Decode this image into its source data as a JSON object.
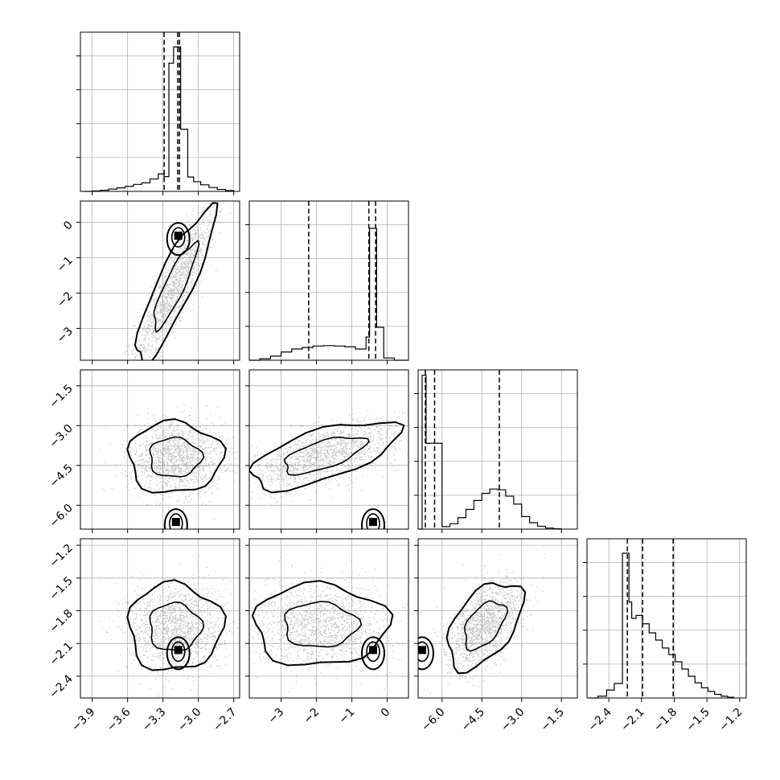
{
  "chart_data": {
    "type": "corner",
    "dimensions": 4,
    "grid": true,
    "params": [
      {
        "range": [
          -4.0,
          -2.65
        ],
        "ticks": [
          -3.9,
          -3.6,
          -3.3,
          -3.0,
          -2.7
        ],
        "tick_labels": [
          "−3.9",
          "−3.6",
          "−3.3",
          "−3.0",
          "−2.7"
        ]
      },
      {
        "range": [
          -3.9,
          0.6
        ],
        "ticks": [
          -3,
          -2,
          -1,
          0
        ],
        "tick_labels": [
          "−3",
          "−2",
          "−1",
          "0"
        ]
      },
      {
        "range": [
          -6.9,
          -0.9
        ],
        "ticks": [
          -6.0,
          -4.5,
          -3.0,
          -1.5
        ],
        "tick_labels": [
          "−6.0",
          "−4.5",
          "−3.0",
          "−1.5"
        ]
      },
      {
        "range": [
          -2.6,
          -1.14
        ],
        "ticks": [
          -2.4,
          -2.1,
          -1.8,
          -1.5,
          -1.2
        ],
        "tick_labels": [
          "−2.4",
          "−2.1",
          "−1.8",
          "−1.5",
          "−1.2"
        ]
      }
    ],
    "histograms": [
      {
        "bin_edges": [
          -3.97,
          -3.9,
          -3.83,
          -3.76,
          -3.69,
          -3.62,
          -3.55,
          -3.48,
          -3.41,
          -3.34,
          -3.29,
          -3.25,
          -3.21,
          -3.15,
          -3.09,
          -3.04,
          -2.98,
          -2.91,
          -2.84,
          -2.77,
          -2.7
        ],
        "counts": [
          0,
          1,
          3,
          6,
          9,
          13,
          18,
          22,
          32,
          45,
          38,
          330,
          372,
          160,
          37,
          25,
          17,
          10,
          5,
          2
        ],
        "ymax": 410,
        "quantiles": [
          -3.29,
          -3.175,
          -3.16
        ]
      },
      {
        "bin_edges": [
          -3.9,
          -3.6,
          -3.3,
          -3.0,
          -2.7,
          -2.4,
          -2.1,
          -1.8,
          -1.5,
          -1.2,
          -0.9,
          -0.6,
          -0.5,
          -0.4,
          -0.3,
          -0.1,
          0.2,
          0.6
        ],
        "counts": [
          0,
          4,
          11,
          22,
          30,
          34,
          38,
          39,
          38,
          36,
          30,
          62,
          352,
          352,
          88,
          6,
          0
        ],
        "ymax": 425,
        "quantiles": [
          -2.22,
          -0.52,
          -0.33
        ]
      },
      {
        "bin_edges": [
          -6.9,
          -6.75,
          -6.6,
          -6.45,
          -6.3,
          -6.15,
          -6.0,
          -5.7,
          -5.4,
          -5.1,
          -4.8,
          -4.5,
          -4.2,
          -3.9,
          -3.6,
          -3.3,
          -3.0,
          -2.7,
          -2.4,
          -2.1,
          -1.8,
          -1.5
        ],
        "counts": [
          0,
          430,
          240,
          240,
          240,
          240,
          7,
          15,
          32,
          55,
          80,
          100,
          112,
          110,
          92,
          70,
          35,
          18,
          8,
          3,
          1
        ],
        "ymax": 445,
        "quantiles": [
          -6.63,
          -6.28,
          -3.84
        ]
      },
      {
        "bin_edges": [
          -2.58,
          -2.5,
          -2.42,
          -2.35,
          -2.275,
          -2.245,
          -2.215,
          -2.19,
          -2.15,
          -2.09,
          -2.03,
          -1.97,
          -1.91,
          -1.85,
          -1.79,
          -1.73,
          -1.67,
          -1.61,
          -1.55,
          -1.49,
          -1.43,
          -1.37,
          -1.31,
          -1.25
        ],
        "counts": [
          0,
          5,
          22,
          40,
          400,
          400,
          265,
          220,
          228,
          205,
          180,
          160,
          138,
          120,
          100,
          80,
          60,
          42,
          28,
          18,
          10,
          5,
          2
        ],
        "ymax": 440,
        "quantiles": [
          -2.23,
          -2.09,
          -1.81
        ]
      }
    ],
    "scatter_2d": [
      {
        "row": 1,
        "col": 0,
        "cov": [
          0.028,
          0.16,
          1.2
        ],
        "mean": [
          -3.2,
          -1.8
        ],
        "mode_point": [
          -3.17,
          -0.38
        ]
      },
      {
        "row": 2,
        "col": 0,
        "cov": [
          0.04,
          0.0,
          0.45
        ],
        "mean": [
          -3.2,
          -4.2
        ],
        "mode_point": [
          -3.19,
          -6.63
        ]
      },
      {
        "row": 2,
        "col": 1,
        "cov": [
          1.1,
          0.42,
          0.4
        ],
        "mean": [
          -1.8,
          -4.1
        ],
        "mode_point": [
          -0.4,
          -6.63
        ]
      },
      {
        "row": 3,
        "col": 0,
        "cov": [
          0.04,
          0.0,
          0.04
        ],
        "mean": [
          -3.2,
          -1.95
        ],
        "mode_point": [
          -3.17,
          -2.16
        ]
      },
      {
        "row": 3,
        "col": 1,
        "cov": [
          0.9,
          0.0,
          0.035
        ],
        "mean": [
          -1.9,
          -1.93
        ],
        "mode_point": [
          -0.4,
          -2.16
        ]
      },
      {
        "row": 3,
        "col": 2,
        "cov": [
          0.5,
          0.07,
          0.04
        ],
        "mean": [
          -4.4,
          -1.93
        ],
        "mode_point": [
          -6.75,
          -2.16
        ]
      }
    ]
  }
}
